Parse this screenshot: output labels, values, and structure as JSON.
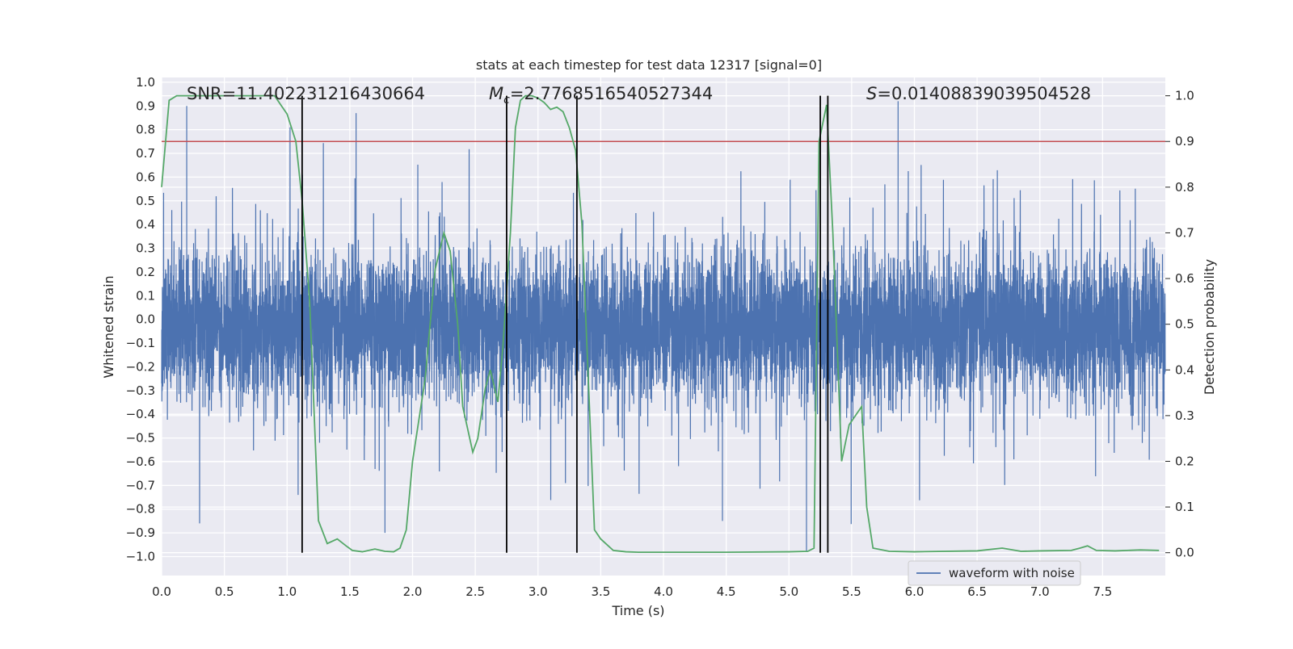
{
  "chart_data": {
    "type": "line",
    "title": "stats at each timestep for test data 12317 [signal=0]",
    "xlabel": "Time (s)",
    "ylabel_left": "Whitened strain",
    "ylabel_right": "Detection probability",
    "xlim": [
      0.0,
      8.0
    ],
    "ylim_left": [
      -1.08,
      1.02
    ],
    "ylim_right": [
      -0.05,
      1.04
    ],
    "x_ticks": [
      "0.0",
      "0.5",
      "1.0",
      "1.5",
      "2.0",
      "2.5",
      "3.0",
      "3.5",
      "4.0",
      "4.5",
      "5.0",
      "5.5",
      "6.0",
      "6.5",
      "7.0",
      "7.5"
    ],
    "y_left_ticks": [
      "1.0",
      "0.9",
      "0.8",
      "0.7",
      "0.6",
      "0.5",
      "0.4",
      "0.3",
      "0.2",
      "0.1",
      "0.0",
      "−0.1",
      "−0.2",
      "−0.3",
      "−0.4",
      "−0.5",
      "−0.6",
      "−0.7",
      "−0.8",
      "−0.9",
      "−1.0"
    ],
    "y_right_ticks": [
      "1.0",
      "0.9",
      "0.8",
      "0.7",
      "0.6",
      "0.5",
      "0.4",
      "0.3",
      "0.2",
      "0.1",
      "0.0"
    ],
    "grid": true,
    "legend_position": "bottom-right",
    "annotations": {
      "snr": "SNR=11.402231216430664",
      "mc": "=2.7768516540527344",
      "mc_symbol": "M",
      "mc_subscript": "c",
      "s": "=0.014088390395045​28",
      "s_symbol": "S"
    },
    "series": [
      {
        "name": "waveform with noise",
        "kind": "noise-strain",
        "color": "#4c72b0",
        "sample_rate_hz": 1024,
        "duration_s": 8.0,
        "core_range": [
          -0.42,
          0.36
        ],
        "peak_examples": [
          {
            "x": 0.2,
            "y": 0.9
          },
          {
            "x": 1.55,
            "y": 0.87
          },
          {
            "x": 5.87,
            "y": 0.92
          },
          {
            "x": 5.14,
            "y": -0.98
          },
          {
            "x": 1.78,
            "y": -0.9
          },
          {
            "x": 4.47,
            "y": -0.85
          }
        ]
      },
      {
        "name": "",
        "kind": "detection-probability",
        "color": "#55a868",
        "axis": "right",
        "x": [
          0.0,
          0.06,
          0.12,
          0.18,
          0.3,
          0.5,
          0.7,
          0.9,
          0.95,
          1.0,
          1.07,
          1.12,
          1.18,
          1.25,
          1.32,
          1.4,
          1.47,
          1.52,
          1.6,
          1.7,
          1.78,
          1.85,
          1.9,
          1.95,
          2.0,
          2.1,
          2.18,
          2.25,
          2.3,
          2.36,
          2.4,
          2.48,
          2.52,
          2.58,
          2.62,
          2.68,
          2.72,
          2.78,
          2.82,
          2.86,
          2.9,
          2.95,
          3.0,
          3.05,
          3.1,
          3.15,
          3.2,
          3.25,
          3.3,
          3.35,
          3.45,
          3.5,
          3.6,
          3.7,
          3.8,
          4.0,
          4.5,
          5.0,
          5.15,
          5.2,
          5.24,
          5.3,
          5.35,
          5.42,
          5.48,
          5.53,
          5.58,
          5.62,
          5.67,
          5.8,
          6.0,
          6.5,
          6.7,
          6.85,
          7.0,
          7.25,
          7.32,
          7.38,
          7.45,
          7.6,
          7.8,
          7.95
        ],
        "y": [
          0.8,
          0.99,
          1.0,
          1.0,
          1.0,
          1.0,
          1.0,
          1.0,
          0.98,
          0.96,
          0.9,
          0.77,
          0.55,
          0.07,
          0.02,
          0.03,
          0.015,
          0.005,
          0.002,
          0.008,
          0.003,
          0.002,
          0.01,
          0.05,
          0.2,
          0.38,
          0.62,
          0.7,
          0.66,
          0.5,
          0.32,
          0.22,
          0.25,
          0.36,
          0.4,
          0.33,
          0.45,
          0.7,
          0.93,
          0.99,
          1.0,
          1.0,
          0.995,
          0.985,
          0.97,
          0.975,
          0.965,
          0.93,
          0.88,
          0.72,
          0.05,
          0.03,
          0.005,
          0.002,
          0.001,
          0.001,
          0.001,
          0.002,
          0.003,
          0.01,
          0.9,
          0.98,
          0.7,
          0.2,
          0.28,
          0.3,
          0.32,
          0.1,
          0.01,
          0.003,
          0.002,
          0.004,
          0.01,
          0.003,
          0.004,
          0.005,
          0.01,
          0.015,
          0.005,
          0.004,
          0.006,
          0.005
        ]
      }
    ],
    "horizontal_lines": [
      {
        "axis": "right",
        "y": 0.9,
        "color": "#c44e52"
      }
    ],
    "vertical_lines": [
      {
        "x": 1.12,
        "color": "#000000"
      },
      {
        "x": 2.75,
        "color": "#000000"
      },
      {
        "x": 3.31,
        "color": "#000000"
      },
      {
        "x": 5.25,
        "color": "#000000"
      },
      {
        "x": 5.31,
        "color": "#000000"
      }
    ],
    "vertical_line_range_right": [
      0.0,
      1.0
    ]
  }
}
